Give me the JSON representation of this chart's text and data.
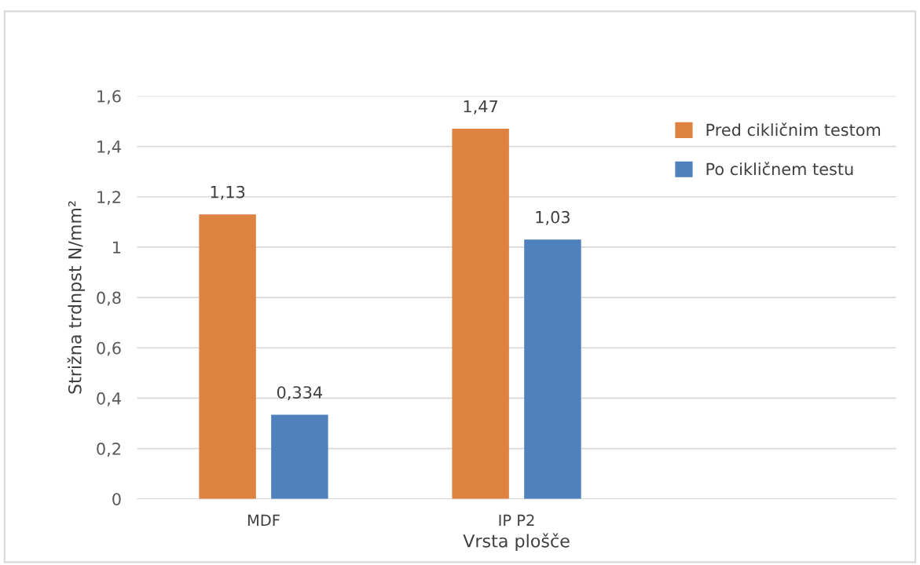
{
  "chart_data": {
    "type": "bar",
    "xlabel": "Vrsta plošče",
    "ylabel": "Strižna trdnpst N/mm²",
    "categories": [
      "MDF",
      "IP P2",
      null
    ],
    "series": [
      {
        "name": "Pred cikličnim testom",
        "color": "#dd8240",
        "values": [
          1.13,
          1.47,
          null
        ],
        "value_labels": [
          "1,13",
          "1,47",
          null
        ]
      },
      {
        "name": "Po cikličnem testu",
        "color": "#4f81bd",
        "values": [
          0.334,
          1.03,
          null
        ],
        "value_labels": [
          "0,334",
          "1,03",
          null
        ]
      }
    ],
    "ylim": [
      0,
      1.6
    ],
    "yticks": [
      {
        "value": 0,
        "label": "0"
      },
      {
        "value": 0.2,
        "label": "0,2"
      },
      {
        "value": 0.4,
        "label": "0,4"
      },
      {
        "value": 0.6,
        "label": "0,6"
      },
      {
        "value": 0.8,
        "label": "0,8"
      },
      {
        "value": 1,
        "label": "1"
      },
      {
        "value": 1.2,
        "label": "1,2"
      },
      {
        "value": 1.4,
        "label": "1,4"
      },
      {
        "value": 1.6,
        "label": "1,6"
      }
    ],
    "grid": "y",
    "legend": "top right"
  }
}
